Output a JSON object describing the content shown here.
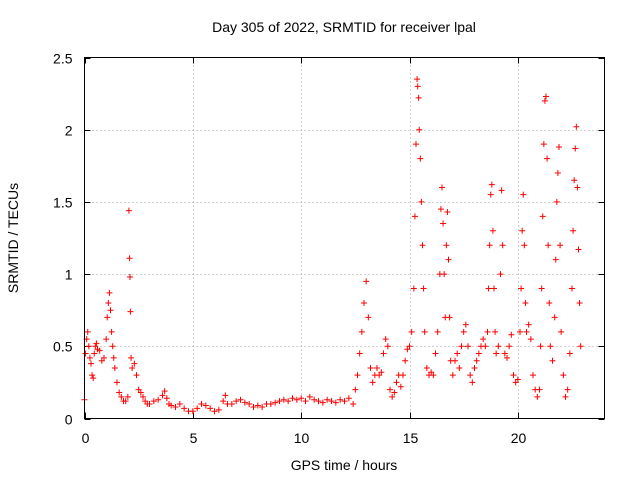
{
  "chart_data": {
    "type": "scatter",
    "title": "Day 305 of 2022, SRMTID for receiver lpal",
    "xlabel": "GPS time / hours",
    "ylabel": "SRMTID / TECUs",
    "xlim": [
      0,
      24
    ],
    "ylim": [
      0,
      2.5
    ],
    "xticks": [
      0,
      5,
      10,
      15,
      20
    ],
    "xtick_labels": [
      "0",
      "5",
      "10",
      "15",
      "20"
    ],
    "yticks": [
      0,
      0.5,
      1,
      1.5,
      2,
      2.5
    ],
    "ytick_labels": [
      "0",
      "0.5",
      "1",
      "1.5",
      "2",
      "2.5"
    ],
    "grid": true,
    "marker": "+",
    "color": "#ff0000",
    "series": [
      {
        "name": "SRMTID",
        "points": [
          [
            0.0,
            0.13
          ],
          [
            0.05,
            0.45
          ],
          [
            0.1,
            0.55
          ],
          [
            0.15,
            0.6
          ],
          [
            0.2,
            0.5
          ],
          [
            0.25,
            0.42
          ],
          [
            0.3,
            0.38
          ],
          [
            0.35,
            0.3
          ],
          [
            0.4,
            0.28
          ],
          [
            0.45,
            0.45
          ],
          [
            0.5,
            0.5
          ],
          [
            0.55,
            0.52
          ],
          [
            0.6,
            0.48
          ],
          [
            0.7,
            0.47
          ],
          [
            0.8,
            0.4
          ],
          [
            0.9,
            0.42
          ],
          [
            1.0,
            0.55
          ],
          [
            1.05,
            0.7
          ],
          [
            1.1,
            0.8
          ],
          [
            1.15,
            0.87
          ],
          [
            1.2,
            0.75
          ],
          [
            1.25,
            0.6
          ],
          [
            1.3,
            0.5
          ],
          [
            1.35,
            0.42
          ],
          [
            1.4,
            0.35
          ],
          [
            1.5,
            0.25
          ],
          [
            1.6,
            0.18
          ],
          [
            1.7,
            0.15
          ],
          [
            1.8,
            0.12
          ],
          [
            1.9,
            0.12
          ],
          [
            2.0,
            0.15
          ],
          [
            2.05,
            1.44
          ],
          [
            2.08,
            1.11
          ],
          [
            2.1,
            0.98
          ],
          [
            2.12,
            0.74
          ],
          [
            2.15,
            0.42
          ],
          [
            2.2,
            0.35
          ],
          [
            2.3,
            0.38
          ],
          [
            2.4,
            0.3
          ],
          [
            2.5,
            0.2
          ],
          [
            2.6,
            0.18
          ],
          [
            2.7,
            0.15
          ],
          [
            2.8,
            0.12
          ],
          [
            2.9,
            0.1
          ],
          [
            3.0,
            0.1
          ],
          [
            3.2,
            0.12
          ],
          [
            3.4,
            0.13
          ],
          [
            3.6,
            0.16
          ],
          [
            3.7,
            0.19
          ],
          [
            3.8,
            0.14
          ],
          [
            3.9,
            0.1
          ],
          [
            4.0,
            0.09
          ],
          [
            4.2,
            0.08
          ],
          [
            4.4,
            0.1
          ],
          [
            4.6,
            0.07
          ],
          [
            4.8,
            0.05
          ],
          [
            5.0,
            0.05
          ],
          [
            5.2,
            0.07
          ],
          [
            5.4,
            0.1
          ],
          [
            5.6,
            0.09
          ],
          [
            5.8,
            0.07
          ],
          [
            6.0,
            0.05
          ],
          [
            6.2,
            0.06
          ],
          [
            6.4,
            0.12
          ],
          [
            6.5,
            0.16
          ],
          [
            6.6,
            0.1
          ],
          [
            6.8,
            0.1
          ],
          [
            7.0,
            0.12
          ],
          [
            7.2,
            0.13
          ],
          [
            7.4,
            0.11
          ],
          [
            7.6,
            0.1
          ],
          [
            7.8,
            0.08
          ],
          [
            8.0,
            0.09
          ],
          [
            8.2,
            0.08
          ],
          [
            8.4,
            0.1
          ],
          [
            8.6,
            0.1
          ],
          [
            8.8,
            0.11
          ],
          [
            9.0,
            0.12
          ],
          [
            9.2,
            0.13
          ],
          [
            9.4,
            0.12
          ],
          [
            9.6,
            0.14
          ],
          [
            9.8,
            0.13
          ],
          [
            10.0,
            0.14
          ],
          [
            10.2,
            0.12
          ],
          [
            10.4,
            0.15
          ],
          [
            10.6,
            0.13
          ],
          [
            10.8,
            0.12
          ],
          [
            11.0,
            0.11
          ],
          [
            11.2,
            0.13
          ],
          [
            11.4,
            0.12
          ],
          [
            11.6,
            0.11
          ],
          [
            11.8,
            0.13
          ],
          [
            12.0,
            0.12
          ],
          [
            12.2,
            0.14
          ],
          [
            12.4,
            0.1
          ],
          [
            12.5,
            0.2
          ],
          [
            12.6,
            0.3
          ],
          [
            12.7,
            0.45
          ],
          [
            12.8,
            0.6
          ],
          [
            12.9,
            0.8
          ],
          [
            13.0,
            0.95
          ],
          [
            13.1,
            0.7
          ],
          [
            13.2,
            0.35
          ],
          [
            13.3,
            0.25
          ],
          [
            13.4,
            0.3
          ],
          [
            13.5,
            0.35
          ],
          [
            13.6,
            0.3
          ],
          [
            13.7,
            0.32
          ],
          [
            13.8,
            0.45
          ],
          [
            13.9,
            0.55
          ],
          [
            14.0,
            0.5
          ],
          [
            14.1,
            0.2
          ],
          [
            14.2,
            0.15
          ],
          [
            14.3,
            0.18
          ],
          [
            14.4,
            0.25
          ],
          [
            14.5,
            0.3
          ],
          [
            14.6,
            0.22
          ],
          [
            14.7,
            0.3
          ],
          [
            14.8,
            0.4
          ],
          [
            14.9,
            0.48
          ],
          [
            15.0,
            0.5
          ],
          [
            15.1,
            0.6
          ],
          [
            15.2,
            0.9
          ],
          [
            15.25,
            1.4
          ],
          [
            15.3,
            1.9
          ],
          [
            15.35,
            2.35
          ],
          [
            15.38,
            2.3
          ],
          [
            15.42,
            2.22
          ],
          [
            15.45,
            2.0
          ],
          [
            15.5,
            1.8
          ],
          [
            15.55,
            1.5
          ],
          [
            15.6,
            1.2
          ],
          [
            15.65,
            0.9
          ],
          [
            15.7,
            0.6
          ],
          [
            15.8,
            0.35
          ],
          [
            15.9,
            0.3
          ],
          [
            16.0,
            0.32
          ],
          [
            16.1,
            0.3
          ],
          [
            16.2,
            0.45
          ],
          [
            16.3,
            0.6
          ],
          [
            16.4,
            1.0
          ],
          [
            16.45,
            1.45
          ],
          [
            16.5,
            1.6
          ],
          [
            16.55,
            1.35
          ],
          [
            16.6,
            1.0
          ],
          [
            16.65,
            0.7
          ],
          [
            16.7,
            1.2
          ],
          [
            16.75,
            1.43
          ],
          [
            16.8,
            1.1
          ],
          [
            16.85,
            0.7
          ],
          [
            16.9,
            0.4
          ],
          [
            17.0,
            0.3
          ],
          [
            17.1,
            0.4
          ],
          [
            17.2,
            0.45
          ],
          [
            17.3,
            0.35
          ],
          [
            17.4,
            0.5
          ],
          [
            17.5,
            0.6
          ],
          [
            17.6,
            0.65
          ],
          [
            17.7,
            0.5
          ],
          [
            17.8,
            0.3
          ],
          [
            17.9,
            0.25
          ],
          [
            18.0,
            0.35
          ],
          [
            18.1,
            0.4
          ],
          [
            18.2,
            0.45
          ],
          [
            18.3,
            0.5
          ],
          [
            18.4,
            0.55
          ],
          [
            18.5,
            0.5
          ],
          [
            18.6,
            0.6
          ],
          [
            18.65,
            0.9
          ],
          [
            18.7,
            1.2
          ],
          [
            18.75,
            1.55
          ],
          [
            18.8,
            1.62
          ],
          [
            18.85,
            1.3
          ],
          [
            18.9,
            0.9
          ],
          [
            18.95,
            0.6
          ],
          [
            19.0,
            0.45
          ],
          [
            19.1,
            0.5
          ],
          [
            19.2,
            1.0
          ],
          [
            19.25,
            1.58
          ],
          [
            19.3,
            1.2
          ],
          [
            19.4,
            0.45
          ],
          [
            19.5,
            0.42
          ],
          [
            19.6,
            0.5
          ],
          [
            19.7,
            0.58
          ],
          [
            19.8,
            0.3
          ],
          [
            19.9,
            0.25
          ],
          [
            20.0,
            0.27
          ],
          [
            20.1,
            0.6
          ],
          [
            20.15,
            0.9
          ],
          [
            20.2,
            1.3
          ],
          [
            20.25,
            1.55
          ],
          [
            20.3,
            1.2
          ],
          [
            20.35,
            0.8
          ],
          [
            20.4,
            0.6
          ],
          [
            20.5,
            0.65
          ],
          [
            20.6,
            0.55
          ],
          [
            20.7,
            0.3
          ],
          [
            20.8,
            0.2
          ],
          [
            20.9,
            0.15
          ],
          [
            21.0,
            0.2
          ],
          [
            21.05,
            0.5
          ],
          [
            21.1,
            0.9
          ],
          [
            21.15,
            1.4
          ],
          [
            21.2,
            1.9
          ],
          [
            21.25,
            2.2
          ],
          [
            21.3,
            2.23
          ],
          [
            21.35,
            1.8
          ],
          [
            21.4,
            1.2
          ],
          [
            21.45,
            0.8
          ],
          [
            21.5,
            0.5
          ],
          [
            21.6,
            0.4
          ],
          [
            21.7,
            0.7
          ],
          [
            21.75,
            1.1
          ],
          [
            21.8,
            1.5
          ],
          [
            21.85,
            1.7
          ],
          [
            21.9,
            1.88
          ],
          [
            21.95,
            1.2
          ],
          [
            22.0,
            0.6
          ],
          [
            22.1,
            0.3
          ],
          [
            22.2,
            0.15
          ],
          [
            22.3,
            0.2
          ],
          [
            22.4,
            0.45
          ],
          [
            22.5,
            0.9
          ],
          [
            22.55,
            1.3
          ],
          [
            22.6,
            1.65
          ],
          [
            22.65,
            1.87
          ],
          [
            22.7,
            2.02
          ],
          [
            22.75,
            1.6
          ],
          [
            22.8,
            1.17
          ],
          [
            22.85,
            0.8
          ],
          [
            22.9,
            0.5
          ]
        ]
      }
    ]
  }
}
